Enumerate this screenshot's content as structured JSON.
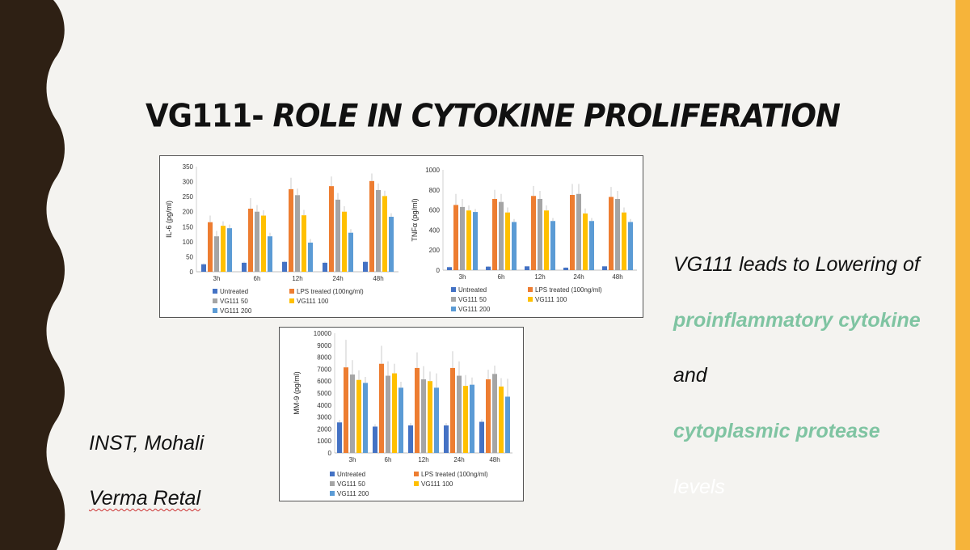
{
  "slide": {
    "title_plain": "VG111- ",
    "title_italic": "ROLE IN CYTOKINE PROLIFERATION",
    "right_text": {
      "line1": "VG111 leads to Lowering of",
      "line2": "proinflammatory cytokine",
      "line3": "and",
      "line4": "cytoplasmic protease",
      "line5": "levels"
    },
    "institute": "INST, Mohali",
    "author": "Verma Retal",
    "colors": {
      "band": "#2e2014",
      "stripe": "#f6b43a",
      "green_text": "#7fc4a2",
      "background": "#f4f3f0"
    }
  },
  "chart_data": [
    {
      "type": "bar",
      "ylabel": "IL-6 (pg/ml)",
      "categories": [
        "3h",
        "6h",
        "12h",
        "24h",
        "48h"
      ],
      "ylim": [
        0,
        350
      ],
      "yticks": [
        0,
        50,
        100,
        150,
        200,
        250,
        300,
        350
      ],
      "series": [
        {
          "name": "Untreated",
          "color": "#4472c4",
          "values": [
            25,
            30,
            33,
            30,
            33
          ]
        },
        {
          "name": "LPS treated (100ng/ml)",
          "color": "#ed7d31",
          "values": [
            165,
            210,
            275,
            285,
            302
          ]
        },
        {
          "name": "VG111 50",
          "color": "#a5a5a5",
          "values": [
            118,
            200,
            255,
            240,
            272
          ]
        },
        {
          "name": "VG111 100",
          "color": "#ffc000",
          "values": [
            153,
            187,
            188,
            200,
            252
          ]
        },
        {
          "name": "VG111 200",
          "color": "#5b9bd5",
          "values": [
            145,
            118,
            97,
            130,
            183
          ]
        }
      ],
      "error": [
        [
          3,
          4,
          4,
          4,
          4
        ],
        [
          22,
          35,
          38,
          32,
          25
        ],
        [
          18,
          22,
          22,
          22,
          22
        ],
        [
          15,
          18,
          18,
          18,
          18
        ],
        [
          12,
          12,
          12,
          12,
          12
        ]
      ],
      "legend": "bottom"
    },
    {
      "type": "bar",
      "ylabel": "TNFα (pg/ml)",
      "categories": [
        "3h",
        "6h",
        "12h",
        "24h",
        "48h"
      ],
      "ylim": [
        0,
        1000
      ],
      "yticks": [
        0,
        200,
        400,
        600,
        800,
        1000
      ],
      "series": [
        {
          "name": "Untreated",
          "color": "#4472c4",
          "values": [
            30,
            35,
            38,
            25,
            38
          ]
        },
        {
          "name": "LPS treated (100ng/ml)",
          "color": "#ed7d31",
          "values": [
            650,
            710,
            740,
            750,
            730
          ]
        },
        {
          "name": "VG111 50",
          "color": "#a5a5a5",
          "values": [
            630,
            680,
            710,
            760,
            710
          ]
        },
        {
          "name": "VG111 100",
          "color": "#ffc000",
          "values": [
            595,
            575,
            595,
            565,
            575
          ]
        },
        {
          "name": "VG111 200",
          "color": "#5b9bd5",
          "values": [
            580,
            480,
            490,
            490,
            480
          ]
        }
      ],
      "error": [
        [
          5,
          5,
          5,
          5,
          5
        ],
        [
          110,
          90,
          100,
          110,
          100
        ],
        [
          80,
          80,
          80,
          100,
          80
        ],
        [
          50,
          50,
          50,
          50,
          50
        ],
        [
          30,
          30,
          30,
          30,
          30
        ]
      ],
      "legend": "bottom"
    },
    {
      "type": "bar",
      "ylabel": "MM-9 (pg/ml)",
      "categories": [
        "3h",
        "6h",
        "12h",
        "24h",
        "48h"
      ],
      "ylim": [
        0,
        10000
      ],
      "yticks": [
        0,
        1000,
        2000,
        3000,
        4000,
        5000,
        6000,
        7000,
        8000,
        9000,
        10000
      ],
      "series": [
        {
          "name": "Untreated",
          "color": "#4472c4",
          "values": [
            2550,
            2200,
            2300,
            2300,
            2600
          ]
        },
        {
          "name": "LPS treated (100ng/ml)",
          "color": "#ed7d31",
          "values": [
            7150,
            7450,
            7100,
            7100,
            6150
          ]
        },
        {
          "name": "VG111 50",
          "color": "#a5a5a5",
          "values": [
            6550,
            6450,
            6150,
            6450,
            6600
          ]
        },
        {
          "name": "VG111 100",
          "color": "#ffc000",
          "values": [
            6100,
            6650,
            6000,
            5600,
            5550
          ]
        },
        {
          "name": "VG111 200",
          "color": "#5b9bd5",
          "values": [
            5850,
            5450,
            5450,
            5700,
            4700
          ]
        }
      ],
      "error": [
        [
          200,
          200,
          200,
          200,
          200
        ],
        [
          2300,
          1500,
          1300,
          1400,
          800
        ],
        [
          1200,
          1200,
          1100,
          1200,
          700
        ],
        [
          800,
          800,
          800,
          900,
          700
        ],
        [
          500,
          500,
          1200,
          600,
          1500
        ]
      ],
      "legend": "bottom"
    }
  ]
}
